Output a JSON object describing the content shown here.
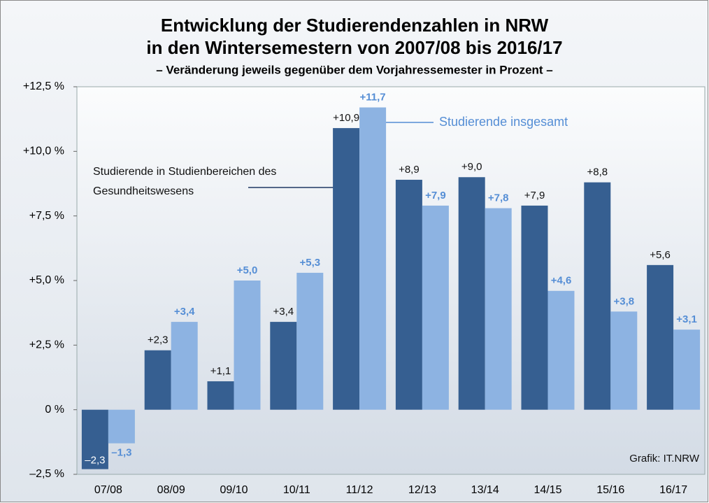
{
  "chart_data": {
    "type": "bar",
    "title": [
      "Entwicklung der Studierendenzahlen in NRW",
      "in den Wintersemestern von 2007/08 bis 2016/17"
    ],
    "subtitle": "– Veränderung jeweils gegenüber dem Vorjahressemester in Prozent –",
    "categories": [
      "07/08",
      "08/09",
      "09/10",
      "10/11",
      "11/12",
      "12/13",
      "13/14",
      "14/15",
      "15/16",
      "16/17"
    ],
    "series": [
      {
        "name": "Studierende in Studienbereichen des Gesundheitswesens",
        "color": "#365f91",
        "values": [
          -2.3,
          2.3,
          1.1,
          3.4,
          10.9,
          8.9,
          9.0,
          7.9,
          8.8,
          5.6
        ],
        "value_labels": [
          "–2,3",
          "+2,3",
          "+1,1",
          "+3,4",
          "+10,9",
          "+8,9",
          "+9,0",
          "+7,9",
          "+8,8",
          "+5,6"
        ]
      },
      {
        "name": "Studierende insgesamt",
        "color": "#8db3e2",
        "values": [
          -1.3,
          3.4,
          5.0,
          5.3,
          11.7,
          7.9,
          7.8,
          4.6,
          3.8,
          3.1
        ],
        "value_labels": [
          "–1,3",
          "+3,4",
          "+5,0",
          "+5,3",
          "+11,7",
          "+7,9",
          "+7,8",
          "+4,6",
          "+3,8",
          "+3,1"
        ]
      }
    ],
    "ylim": [
      -2.5,
      12.5
    ],
    "yticks": [
      {
        "value": -2.5,
        "label": "–2,5 %"
      },
      {
        "value": 0,
        "label": "0 %"
      },
      {
        "value": 2.5,
        "label": "+2,5 %"
      },
      {
        "value": 5,
        "label": "+5,0 %"
      },
      {
        "value": 7.5,
        "label": "+7,5 %"
      },
      {
        "value": 10,
        "label": "+10,0 %"
      },
      {
        "value": 12.5,
        "label": "+12,5 %"
      }
    ],
    "grid": false,
    "credit": "Grafik: IT.NRW"
  }
}
